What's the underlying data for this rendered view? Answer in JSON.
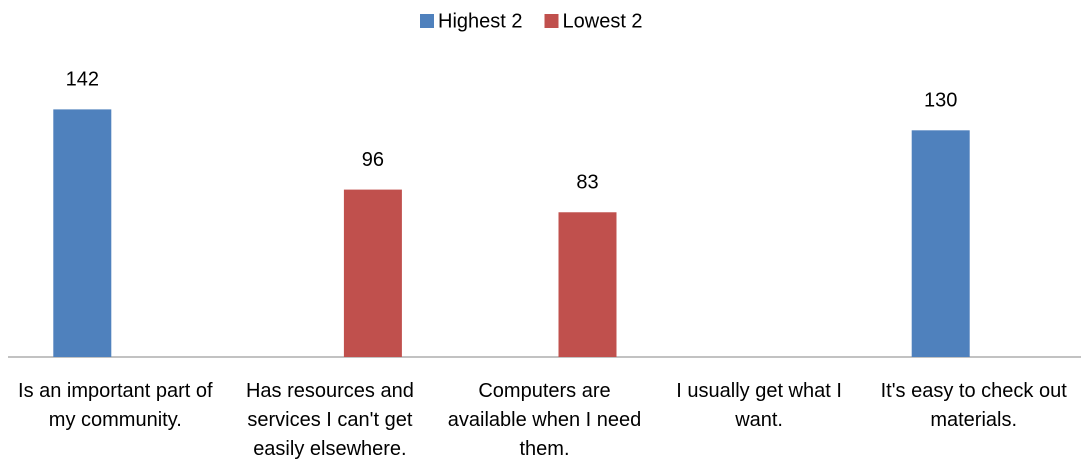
{
  "chart_data": {
    "type": "bar",
    "categories": [
      "Is an important part of my community.",
      "Has resources and services I can't get easily elsewhere.",
      "Computers are available when I need them.",
      "I usually get what I want.",
      "It's easy to check out materials."
    ],
    "series": [
      {
        "name": "Highest 2",
        "color": "#4f81bd",
        "values": [
          142,
          null,
          null,
          null,
          130
        ]
      },
      {
        "name": "Lowest 2",
        "color": "#c0504d",
        "values": [
          null,
          96,
          83,
          null,
          null
        ]
      }
    ],
    "ylim": [
      0,
      160
    ],
    "legend": "top"
  }
}
